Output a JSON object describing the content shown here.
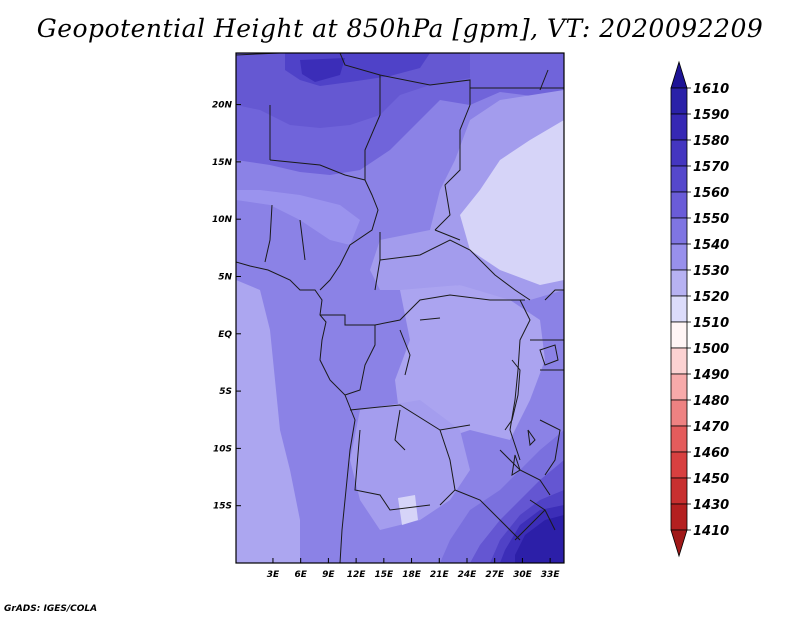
{
  "title": "Geopotential Height at 850hPa [gpm], VT: 2020092209",
  "credit": "GrADS: IGES/COLA",
  "map": {
    "lon_range": [
      -1,
      34.5
    ],
    "lat_range": [
      -20,
      24.5
    ],
    "x_ticks": [
      "3E",
      "6E",
      "9E",
      "12E",
      "15E",
      "18E",
      "21E",
      "24E",
      "27E",
      "30E",
      "33E"
    ],
    "x_tick_values": [
      3,
      6,
      9,
      12,
      15,
      18,
      21,
      24,
      27,
      30,
      33
    ],
    "y_ticks": [
      "20N",
      "15N",
      "10N",
      "5N",
      "EQ",
      "5S",
      "10S",
      "15S"
    ],
    "y_tick_values": [
      20,
      15,
      10,
      5,
      0,
      -5,
      -10,
      -15
    ]
  },
  "colorbar": {
    "labels": [
      "1610",
      "1590",
      "1580",
      "1570",
      "1560",
      "1550",
      "1540",
      "1530",
      "1520",
      "1510",
      "1500",
      "1490",
      "1480",
      "1470",
      "1460",
      "1450",
      "1430",
      "1410"
    ],
    "colors": [
      "#1e1496",
      "#2a21a8",
      "#3628b4",
      "#4436c0",
      "#5548cc",
      "#6a5cd8",
      "#7f75e2",
      "#9890ec",
      "#b7b2f2",
      "#dcdcfa",
      "#fff5f5",
      "#fcd2d2",
      "#f7aaaa",
      "#ee8282",
      "#e45c5c",
      "#d84040",
      "#c83030",
      "#b42020",
      "#a01818"
    ]
  },
  "chart_data": {
    "type": "heatmap",
    "title": "Geopotential Height at 850hPa [gpm], VT: 2020092209",
    "xlabel": "",
    "ylabel": "",
    "x_range": [
      -1,
      34.5
    ],
    "y_range": [
      -20,
      24.5
    ],
    "legend": "right",
    "levels": [
      1410,
      1430,
      1450,
      1460,
      1470,
      1480,
      1490,
      1500,
      1510,
      1520,
      1530,
      1540,
      1550,
      1560,
      1570,
      1580,
      1590,
      1610
    ]
  }
}
